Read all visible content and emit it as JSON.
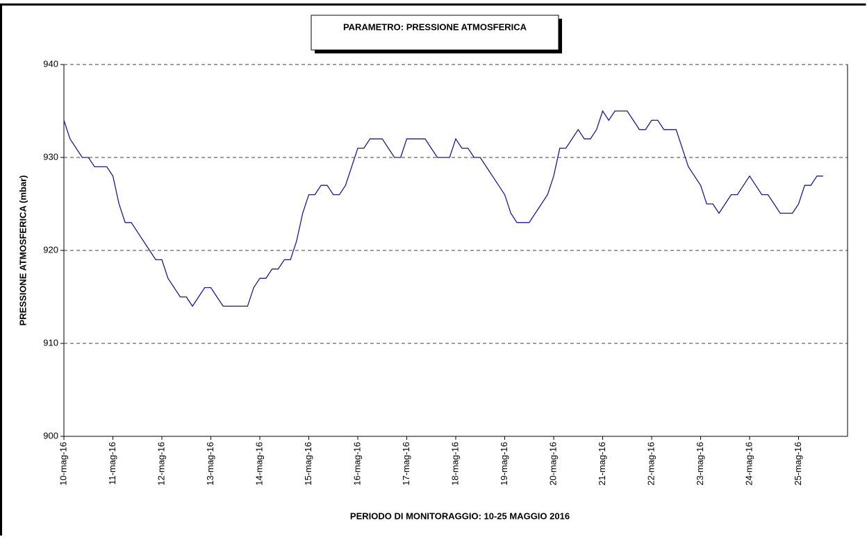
{
  "chart_data": {
    "type": "line",
    "title": "PARAMETRO: PRESSIONE ATMOSFERICA",
    "xlabel": "PERIODO DI MONITORAGGIO: 10-25 MAGGIO 2016",
    "ylabel": "PRESSIONE ATMOSFERICA (mbar)",
    "categories": [
      "10-mag-16",
      null,
      null,
      null,
      null,
      null,
      null,
      null,
      "11-mag-16",
      null,
      null,
      null,
      null,
      null,
      null,
      null,
      "12-mag-16",
      null,
      null,
      null,
      null,
      null,
      null,
      null,
      "13-mag-16",
      null,
      null,
      null,
      null,
      null,
      null,
      null,
      "14-mag-16",
      null,
      null,
      null,
      null,
      null,
      null,
      null,
      "15-mag-16",
      null,
      null,
      null,
      null,
      null,
      null,
      null,
      "16-mag-16",
      null,
      null,
      null,
      null,
      null,
      null,
      null,
      "17-mag-16",
      null,
      null,
      null,
      null,
      null,
      null,
      null,
      "18-mag-16",
      null,
      null,
      null,
      null,
      null,
      null,
      null,
      "19-mag-16",
      null,
      null,
      null,
      null,
      null,
      null,
      null,
      "20-mag-16",
      null,
      null,
      null,
      null,
      null,
      null,
      null,
      "21-mag-16",
      null,
      null,
      null,
      null,
      null,
      null,
      null,
      "22-mag-16",
      null,
      null,
      null,
      null,
      null,
      null,
      null,
      "23-mag-16",
      null,
      null,
      null,
      null,
      null,
      null,
      null,
      "24-mag-16",
      null,
      null,
      null,
      null,
      null,
      null,
      null,
      "25-mag-16",
      null,
      null,
      null,
      null
    ],
    "series": [
      {
        "name": "PRESSIONE ATMOSFERICA",
        "color": "#1a1a80",
        "values": [
          934,
          932,
          931,
          930,
          930,
          929,
          929,
          929,
          928,
          925,
          923,
          923,
          922,
          921,
          920,
          919,
          919,
          917,
          916,
          915,
          915,
          914,
          915,
          916,
          916,
          915,
          914,
          914,
          914,
          914,
          914,
          916,
          917,
          917,
          918,
          918,
          919,
          919,
          921,
          924,
          926,
          926,
          927,
          927,
          926,
          926,
          927,
          929,
          931,
          931,
          932,
          932,
          932,
          931,
          930,
          930,
          932,
          932,
          932,
          932,
          931,
          930,
          930,
          930,
          932,
          931,
          931,
          930,
          930,
          929,
          928,
          927,
          926,
          924,
          923,
          923,
          923,
          924,
          925,
          926,
          928,
          931,
          931,
          932,
          933,
          932,
          932,
          933,
          935,
          934,
          935,
          935,
          935,
          934,
          933,
          933,
          934,
          934,
          933,
          933,
          933,
          931,
          929,
          928,
          927,
          925,
          925,
          924,
          925,
          926,
          926,
          927,
          928,
          927,
          926,
          926,
          925,
          924,
          924,
          924,
          925,
          927,
          927,
          928,
          928
        ]
      }
    ],
    "ylim": [
      900,
      940
    ],
    "yticks": [
      900,
      910,
      920,
      930,
      940
    ],
    "grid": true
  }
}
